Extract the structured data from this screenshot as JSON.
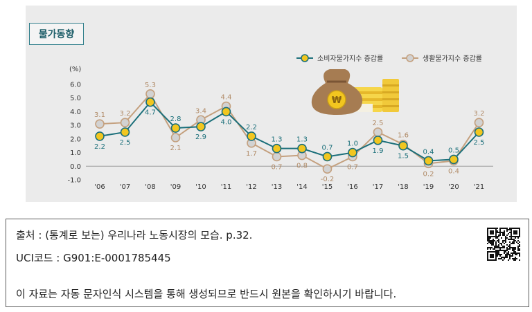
{
  "chart_data": {
    "type": "line",
    "title": "물가동향",
    "yunit": "(%)",
    "ylim": [
      -1.0,
      6.0
    ],
    "yticks": [
      "6.0",
      "5.0",
      "4.0",
      "3.0",
      "2.0",
      "1.0",
      "0.0",
      "-1.0"
    ],
    "categories": [
      "'06",
      "'07",
      "'08",
      "'09",
      "'10",
      "'11",
      "'12",
      "'13",
      "'14",
      "'15",
      "'16",
      "'17",
      "'18",
      "'19",
      "'20",
      "'21"
    ],
    "series": [
      {
        "name": "소비자물가지수 증감률",
        "values": [
          2.2,
          2.5,
          4.7,
          2.8,
          2.9,
          4.0,
          2.2,
          1.3,
          1.3,
          0.7,
          1.0,
          1.9,
          1.5,
          0.4,
          0.5,
          2.5
        ],
        "labels": [
          "2.2",
          "2.5",
          "4.7",
          "2.8",
          "2.9",
          "4.0",
          "2.2",
          "1.3",
          "1.3",
          "0.7",
          "1.0",
          "1.9",
          "1.5",
          "0.4",
          "0.5",
          "2.5"
        ],
        "color": "#1b6f7a",
        "marker": "#f2c61f"
      },
      {
        "name": "생활물가지수 증감률",
        "values": [
          3.1,
          3.2,
          5.3,
          2.1,
          3.4,
          4.4,
          1.7,
          0.7,
          0.8,
          -0.2,
          0.7,
          2.5,
          1.6,
          0.2,
          0.4,
          3.2
        ],
        "labels": [
          "3.1",
          "3.2",
          "5.3",
          "2.1",
          "3.4",
          "4.4",
          "1.7",
          "0.7",
          "0.8",
          "-0.2",
          "0.7",
          "2.5",
          "1.6",
          "0.2",
          "0.4",
          "3.2"
        ],
        "color": "#c4a07e",
        "marker": "#d2d2d2"
      }
    ],
    "legend": "top-right",
    "grid": false
  },
  "source": {
    "citation": "출처 : (통계로 보는) 우리나라 노동시장의 모습. p.32.",
    "uci": "UCI코드 : G901:E-0001785445",
    "notice": "이 자료는 자동 문자인식 시스템을 통해 생성되므로 반드시 원본을 확인하시기 바랍니다."
  },
  "icons": {
    "illustration": "money-bag-coins-icon",
    "qr": "qr-code-icon"
  }
}
